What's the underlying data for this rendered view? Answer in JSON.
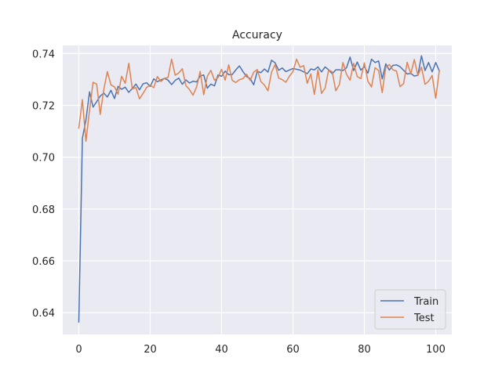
{
  "chart_data": {
    "type": "line",
    "title": "Accuracy",
    "xlabel": "",
    "ylabel": "",
    "xlim": [
      -4.5,
      104.5
    ],
    "ylim": [
      0.6316,
      0.7431
    ],
    "x_ticks": [
      0,
      20,
      40,
      60,
      80,
      100
    ],
    "y_ticks": [
      0.64,
      0.66,
      0.68,
      0.7,
      0.72,
      0.74
    ],
    "y_tick_labels": [
      "0.64",
      "0.66",
      "0.68",
      "0.70",
      "0.72",
      "0.74"
    ],
    "grid": true,
    "legend_position": "lower-right",
    "colors": {
      "background": "#eaeaf2",
      "grid": "#ffffff",
      "train": "#4c72b0",
      "test": "#dd8452"
    },
    "series": [
      {
        "name": "Train",
        "color": "#4c72b0",
        "values": [
          0.6364,
          0.7073,
          0.7143,
          0.7252,
          0.7193,
          0.7214,
          0.7236,
          0.7247,
          0.7232,
          0.7258,
          0.7226,
          0.7273,
          0.7262,
          0.727,
          0.725,
          0.7265,
          0.7282,
          0.726,
          0.7283,
          0.7287,
          0.7273,
          0.7302,
          0.7291,
          0.7298,
          0.7304,
          0.7297,
          0.728,
          0.7296,
          0.7305,
          0.7281,
          0.7298,
          0.7286,
          0.7293,
          0.729,
          0.7313,
          0.7317,
          0.7266,
          0.7282,
          0.7275,
          0.7317,
          0.7312,
          0.7332,
          0.7318,
          0.7319,
          0.7337,
          0.7352,
          0.733,
          0.7311,
          0.7303,
          0.7279,
          0.7331,
          0.7326,
          0.734,
          0.7328,
          0.7374,
          0.7364,
          0.7335,
          0.7344,
          0.733,
          0.7336,
          0.7342,
          0.7339,
          0.7336,
          0.7329,
          0.7322,
          0.734,
          0.7337,
          0.7348,
          0.7329,
          0.7348,
          0.7337,
          0.7322,
          0.7337,
          0.7337,
          0.7334,
          0.7345,
          0.7386,
          0.7334,
          0.7367,
          0.7336,
          0.7349,
          0.7324,
          0.7378,
          0.7365,
          0.7371,
          0.7302,
          0.736,
          0.7336,
          0.7354,
          0.7356,
          0.7349,
          0.7335,
          0.7321,
          0.7323,
          0.7313,
          0.7316,
          0.7391,
          0.7334,
          0.7365,
          0.7329,
          0.7365,
          0.7333
        ]
      },
      {
        "name": "Test",
        "color": "#dd8452",
        "values": [
          0.7112,
          0.7222,
          0.7061,
          0.7181,
          0.7289,
          0.7282,
          0.7165,
          0.7261,
          0.733,
          0.7279,
          0.7271,
          0.7243,
          0.7312,
          0.7285,
          0.7362,
          0.7263,
          0.7269,
          0.7225,
          0.7246,
          0.7269,
          0.7278,
          0.7268,
          0.7311,
          0.7292,
          0.7304,
          0.7307,
          0.7378,
          0.7316,
          0.7325,
          0.7341,
          0.7276,
          0.7261,
          0.7239,
          0.7271,
          0.7331,
          0.7241,
          0.7312,
          0.7335,
          0.7297,
          0.7307,
          0.7339,
          0.7297,
          0.7356,
          0.7296,
          0.7288,
          0.7299,
          0.7303,
          0.732,
          0.7296,
          0.7328,
          0.7338,
          0.7292,
          0.7278,
          0.7256,
          0.7328,
          0.7357,
          0.7305,
          0.7299,
          0.7289,
          0.7312,
          0.733,
          0.7378,
          0.7347,
          0.7353,
          0.7285,
          0.7321,
          0.7242,
          0.7337,
          0.7246,
          0.7266,
          0.7337,
          0.7329,
          0.7256,
          0.728,
          0.7365,
          0.732,
          0.7297,
          0.7362,
          0.7311,
          0.7303,
          0.7364,
          0.7293,
          0.7271,
          0.7345,
          0.7334,
          0.7249,
          0.7347,
          0.7357,
          0.7337,
          0.7332,
          0.7272,
          0.7284,
          0.7366,
          0.7321,
          0.7377,
          0.7315,
          0.7347,
          0.7281,
          0.7293,
          0.7315,
          0.7227,
          0.7333
        ]
      }
    ]
  }
}
